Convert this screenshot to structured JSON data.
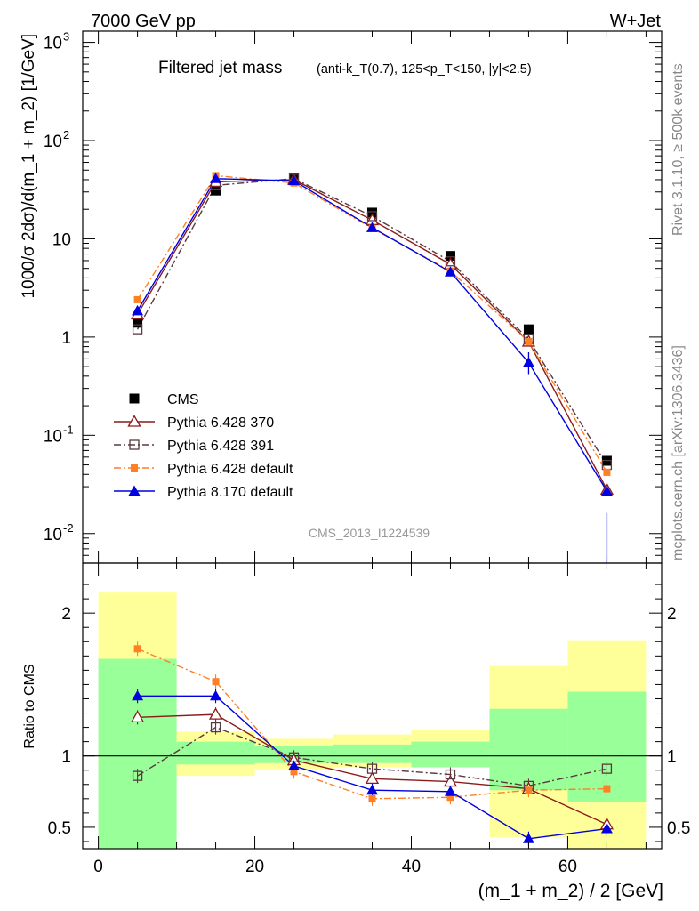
{
  "header": {
    "energy_label": "7000 GeV pp",
    "process_label": "W+Jet"
  },
  "side_labels": {
    "rivet": "Rivet 3.1.10, ≥ 500k events",
    "mcplots": "mcplots.cern.ch [arXiv:1306.3436]"
  },
  "chart_data": [
    {
      "type": "line",
      "panel": "main",
      "title": "Filtered jet mass",
      "subtitle": "(anti-k_T(0.7), 125<p_T<150, |y|<2.5)",
      "ylabel": "1000/σ 2dσ)/d(m_1 + m_2) [1/GeV]",
      "yscale": "log",
      "ylim": [
        0.005,
        1300
      ],
      "xlim": [
        -2,
        72
      ],
      "watermark": "CMS_2013_I1224539",
      "legend_position": "center-left",
      "y_ticks": [
        {
          "value": 0.01,
          "base": "10",
          "exp": "-2"
        },
        {
          "value": 0.1,
          "base": "10",
          "exp": "-1"
        },
        {
          "value": 1,
          "base": "1",
          "exp": ""
        },
        {
          "value": 10,
          "base": "10",
          "exp": ""
        },
        {
          "value": 100,
          "base": "10",
          "exp": "2"
        },
        {
          "value": 1000,
          "base": "10",
          "exp": "3"
        }
      ],
      "x": [
        5,
        15,
        25,
        35,
        45,
        55,
        65
      ],
      "series": [
        {
          "name": "CMS",
          "color": "#000000",
          "marker": "square-filled",
          "line": "none",
          "values": [
            1.4,
            31,
            42,
            18.5,
            6.7,
            1.2,
            0.055
          ]
        },
        {
          "name": "Pythia 6.428 370",
          "color": "#8b1a1a",
          "marker": "triangle-open",
          "line": "solid",
          "values": [
            1.7,
            38,
            40,
            15.5,
            5.5,
            0.9,
            0.028
          ]
        },
        {
          "name": "Pythia 6.428 391",
          "color": "#5a3a40",
          "marker": "square-open",
          "line": "dashdot",
          "values": [
            1.2,
            35,
            41,
            17,
            5.9,
            0.95,
            0.05
          ]
        },
        {
          "name": "Pythia 6.428 default",
          "color": "#ff7f27",
          "marker": "square-filled-small",
          "line": "dashdot",
          "values": [
            2.4,
            44,
            37,
            12.8,
            4.7,
            0.9,
            0.042
          ]
        },
        {
          "name": "Pythia 8.170 default",
          "color": "#0000e0",
          "marker": "triangle-filled",
          "line": "solid",
          "values": [
            1.85,
            41,
            39,
            13,
            4.6,
            0.55,
            0.027
          ]
        }
      ]
    },
    {
      "type": "line",
      "panel": "ratio",
      "ylabel": "Ratio to CMS",
      "xlabel": "(m_1 + m_2) / 2 [GeV]",
      "ylim": [
        0.35,
        2.35
      ],
      "xlim": [
        -2,
        72
      ],
      "x_ticks": [
        0,
        20,
        40,
        60
      ],
      "y_ticks": [
        0.5,
        1,
        2
      ],
      "reference_line": 1,
      "bands": [
        {
          "x0": 0,
          "x1": 10,
          "green": [
            0.35,
            1.68
          ],
          "yellow": [
            0.35,
            2.15
          ]
        },
        {
          "x0": 10,
          "x1": 20,
          "green": [
            0.94,
            1.1
          ],
          "yellow": [
            0.86,
            1.17
          ]
        },
        {
          "x0": 20,
          "x1": 30,
          "green": [
            0.95,
            1.07
          ],
          "yellow": [
            0.9,
            1.12
          ]
        },
        {
          "x0": 30,
          "x1": 40,
          "green": [
            0.95,
            1.08
          ],
          "yellow": [
            0.92,
            1.15
          ]
        },
        {
          "x0": 40,
          "x1": 50,
          "green": [
            0.92,
            1.1
          ],
          "yellow": [
            0.92,
            1.18
          ]
        },
        {
          "x0": 50,
          "x1": 60,
          "green": [
            0.76,
            1.33
          ],
          "yellow": [
            0.43,
            1.63
          ]
        },
        {
          "x0": 60,
          "x1": 70,
          "green": [
            0.68,
            1.45
          ],
          "yellow": [
            0.35,
            1.81
          ]
        }
      ],
      "x": [
        5,
        15,
        25,
        35,
        45,
        55,
        65
      ],
      "series": [
        {
          "name": "Pythia 6.428 370",
          "color": "#8b1a1a",
          "marker": "triangle-open",
          "line": "solid",
          "values": [
            1.27,
            1.29,
            0.97,
            0.84,
            0.82,
            0.77,
            0.52
          ]
        },
        {
          "name": "Pythia 6.428 391",
          "color": "#5a3a40",
          "marker": "square-open",
          "line": "dashdot",
          "values": [
            0.86,
            1.2,
            0.99,
            0.91,
            0.87,
            0.79,
            0.91
          ]
        },
        {
          "name": "Pythia 6.428 default",
          "color": "#ff7f27",
          "marker": "square-filled-small",
          "line": "dashdot",
          "values": [
            1.75,
            1.52,
            0.89,
            0.7,
            0.71,
            0.76,
            0.77
          ]
        },
        {
          "name": "Pythia 8.170 default",
          "color": "#0000e0",
          "marker": "triangle-filled",
          "line": "solid",
          "values": [
            1.42,
            1.42,
            0.93,
            0.76,
            0.75,
            0.42,
            0.49
          ]
        }
      ]
    }
  ]
}
